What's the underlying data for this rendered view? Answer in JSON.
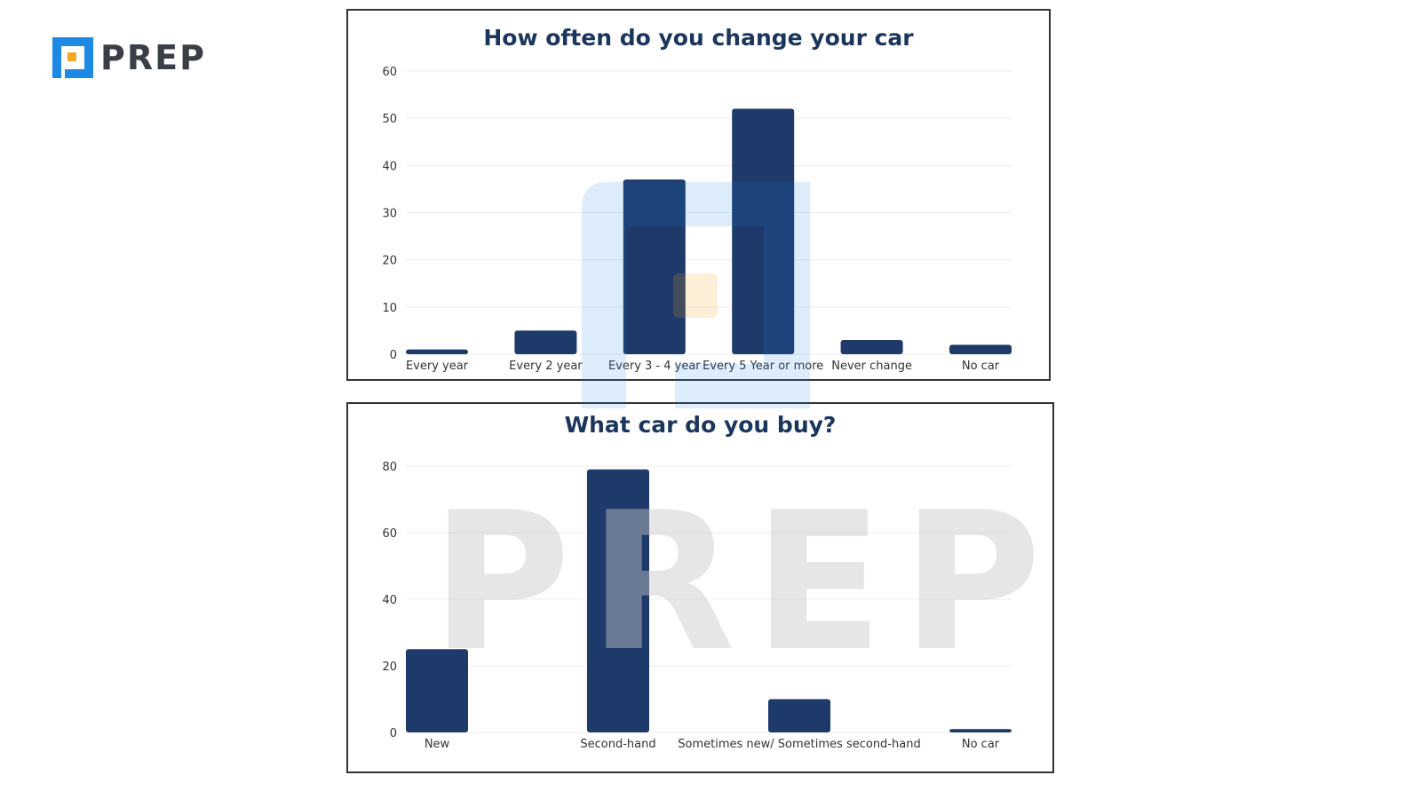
{
  "logo": {
    "text": "PREP",
    "colors": {
      "blue": "#1e88e5",
      "orange": "#f5a623"
    }
  },
  "watermark": "PREP",
  "colors": {
    "bar": "#1e3a6a",
    "title": "#1b365d",
    "grid": "#ececec"
  },
  "chart_data": [
    {
      "type": "bar",
      "title": "How often do you change your car",
      "categories": [
        "Every year",
        "Every 2 year",
        "Every 3 - 4 year",
        "Every 5 Year or more",
        "Never change",
        "No car"
      ],
      "values": [
        1,
        5,
        37,
        52,
        3,
        2
      ],
      "yticks": [
        0,
        10,
        20,
        30,
        40,
        50,
        60
      ],
      "ylim": [
        0,
        60
      ],
      "xlabel": "",
      "ylabel": "",
      "grid": true,
      "legend": "none"
    },
    {
      "type": "bar",
      "title": "What car do you buy?",
      "categories": [
        "New",
        "Second-hand",
        "Sometimes new/ Sometimes second-hand",
        "No car"
      ],
      "values": [
        25,
        79,
        10,
        1
      ],
      "yticks": [
        0,
        20,
        40,
        60,
        80
      ],
      "ylim": [
        0,
        80
      ],
      "xlabel": "",
      "ylabel": "",
      "grid": true,
      "legend": "none"
    }
  ]
}
